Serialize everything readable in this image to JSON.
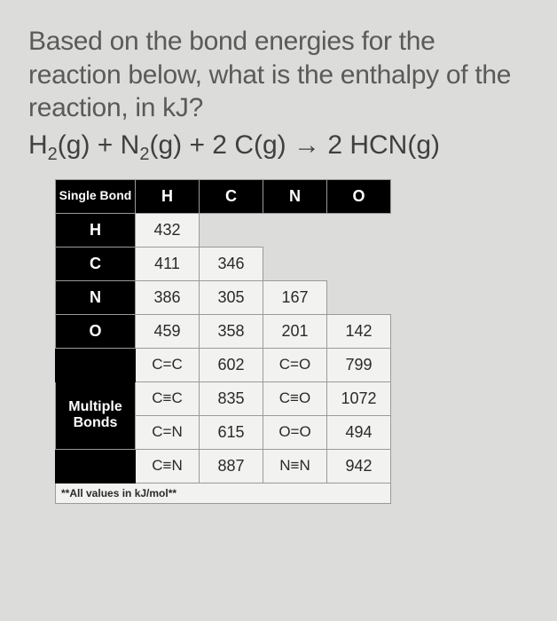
{
  "question": "Based on the bond energies for the reaction below, what is the enthalpy of the reaction, in kJ?",
  "equation_html": "H<sub>2</sub>(g) + N<sub>2</sub>(g) + 2 C(g) → 2 HCN(g)",
  "single": {
    "corner": "Single Bond",
    "cols": [
      "H",
      "C",
      "N",
      "O"
    ],
    "rows": [
      "H",
      "C",
      "N",
      "O"
    ],
    "grid": [
      [
        "432",
        "",
        "",
        ""
      ],
      [
        "411",
        "346",
        "",
        ""
      ],
      [
        "386",
        "305",
        "167",
        ""
      ],
      [
        "459",
        "358",
        "201",
        "142"
      ]
    ]
  },
  "multiple": {
    "label": "Multiple Bonds",
    "rows": [
      [
        "C=C",
        "602",
        "C=O",
        "799"
      ],
      [
        "C≡C",
        "835",
        "C≡O",
        "1072"
      ],
      [
        "C=N",
        "615",
        "O=O",
        "494"
      ],
      [
        "C≡N",
        "887",
        "N≡N",
        "942"
      ]
    ]
  },
  "footnote": "**All values in kJ/mol**",
  "colors": {
    "background": "#dcdcda",
    "cell_bg": "#f2f2f0",
    "header_bg": "#000000",
    "header_fg": "#ffffff",
    "border": "#9a9a98",
    "text": "#3a3a3a"
  }
}
